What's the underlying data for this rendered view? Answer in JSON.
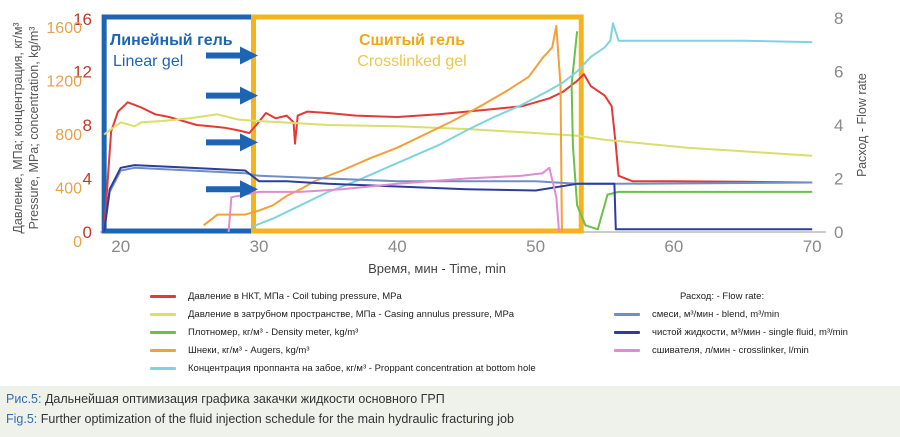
{
  "chart_data": {
    "type": "line",
    "x": {
      "label": "Время, мин - Time, min",
      "min": 18.5,
      "max": 71,
      "ticks": [
        20,
        30,
        40,
        50,
        60,
        70
      ]
    },
    "y_left": {
      "title": [
        "Давление, МПа; концентрация, кг/м³",
        "Pressure, MPa; concentration, kg/m³"
      ],
      "pressure_ticks": [
        0,
        4,
        8,
        12,
        16
      ],
      "concentration_ticks": [
        0,
        400,
        800,
        1200,
        1600
      ],
      "pressure_range": [
        0,
        16
      ],
      "concentration_range": [
        0,
        1600
      ]
    },
    "y_right": {
      "title": "Расход - Flow rate",
      "ticks": [
        0,
        2,
        4,
        6,
        8
      ],
      "range": [
        0,
        8
      ]
    },
    "grid": false,
    "zones": [
      {
        "name": "linear",
        "label_ru": "Линейный гель",
        "label_en": "Linear gel",
        "x_start": 18.8,
        "x_end": 29.6,
        "color": "#1e64b4"
      },
      {
        "name": "crosslinked",
        "label_ru": "Сшитый гель",
        "label_en": "Crosslinked gel",
        "x_start": 29.6,
        "x_end": 53.3,
        "color": "#f5b41e"
      }
    ],
    "arrows_y_pressure": [
      13.2,
      10.2,
      6.7,
      3.2
    ],
    "series": [
      {
        "key": "tubing_pressure",
        "axis": "pressure",
        "color": "#e53935",
        "points": [
          [
            18.8,
            0
          ],
          [
            19.3,
            7.5
          ],
          [
            19.8,
            9
          ],
          [
            20.5,
            9.7
          ],
          [
            21.5,
            9.3
          ],
          [
            22.5,
            8.8
          ],
          [
            23.5,
            8.6
          ],
          [
            24.5,
            8.3
          ],
          [
            25.5,
            8.0
          ],
          [
            26.5,
            7.9
          ],
          [
            27.5,
            7.8
          ],
          [
            28.5,
            7.6
          ],
          [
            29.3,
            7.4
          ],
          [
            29.8,
            8.0
          ],
          [
            30.5,
            8.9
          ],
          [
            31.2,
            8.5
          ],
          [
            32,
            8.7
          ],
          [
            32.5,
            8.2
          ],
          [
            32.6,
            6.6
          ],
          [
            32.8,
            8.7
          ],
          [
            33.5,
            9.0
          ],
          [
            35,
            8.9
          ],
          [
            37,
            8.7
          ],
          [
            40,
            8.6
          ],
          [
            43,
            8.8
          ],
          [
            45,
            9.0
          ],
          [
            47,
            9.2
          ],
          [
            49,
            9.4
          ],
          [
            51,
            10.0
          ],
          [
            52,
            10.5
          ],
          [
            53,
            11.3
          ],
          [
            53.5,
            11.8
          ],
          [
            54,
            10.9
          ],
          [
            55,
            10.2
          ],
          [
            55.5,
            9.4
          ],
          [
            55.8,
            6.5
          ],
          [
            56,
            4.2
          ],
          [
            57,
            3.8
          ],
          [
            60,
            3.8
          ],
          [
            65,
            3.75
          ],
          [
            70,
            3.7
          ]
        ]
      },
      {
        "key": "annulus_pressure",
        "axis": "pressure",
        "color": "#d9df6a",
        "points": [
          [
            18.8,
            7.3
          ],
          [
            20,
            8.2
          ],
          [
            21,
            7.9
          ],
          [
            21.5,
            8.2
          ],
          [
            23,
            8.3
          ],
          [
            25,
            8.5
          ],
          [
            27,
            8.8
          ],
          [
            28.5,
            8.4
          ],
          [
            30,
            8.3
          ],
          [
            35,
            8.0
          ],
          [
            40,
            7.9
          ],
          [
            45,
            7.7
          ],
          [
            50,
            7.4
          ],
          [
            53,
            7.2
          ],
          [
            55,
            6.9
          ],
          [
            58,
            6.6
          ],
          [
            61,
            6.3
          ],
          [
            64,
            6.1
          ],
          [
            67,
            5.9
          ],
          [
            70,
            5.7
          ]
        ]
      },
      {
        "key": "density",
        "axis": "pressure",
        "color": "#6cc04a",
        "points": [
          [
            53,
            15.0
          ],
          [
            52.6,
            11.0
          ],
          [
            52.7,
            6.5
          ],
          [
            53,
            2.0
          ],
          [
            53.6,
            0.5
          ],
          [
            54.5,
            0.2
          ],
          [
            55.2,
            2.8
          ],
          [
            56,
            3.0
          ],
          [
            60,
            3.0
          ],
          [
            70,
            3.0
          ]
        ]
      },
      {
        "key": "augers",
        "axis": "pressure",
        "color": "#f2a03a",
        "points": [
          [
            26,
            0.5
          ],
          [
            27,
            1.3
          ],
          [
            28,
            1.3
          ],
          [
            29,
            1.3
          ],
          [
            30,
            1.6
          ],
          [
            31,
            2.0
          ],
          [
            32,
            2.7
          ],
          [
            33,
            3.2
          ],
          [
            34,
            3.8
          ],
          [
            36,
            4.6
          ],
          [
            38,
            5.5
          ],
          [
            40,
            6.3
          ],
          [
            42,
            7.3
          ],
          [
            44,
            8.3
          ],
          [
            46,
            9.4
          ],
          [
            48,
            10.6
          ],
          [
            49.5,
            11.6
          ],
          [
            50.5,
            13.0
          ],
          [
            51.2,
            13.8
          ],
          [
            51.5,
            15.4
          ],
          [
            51.8,
            11.0
          ],
          [
            51.9,
            0
          ]
        ]
      },
      {
        "key": "proppant",
        "axis": "pressure",
        "color": "#7fd3df",
        "points": [
          [
            29.5,
            0.4
          ],
          [
            31,
            1.0
          ],
          [
            33,
            2.0
          ],
          [
            35,
            3.0
          ],
          [
            37,
            3.8
          ],
          [
            39,
            4.7
          ],
          [
            41,
            5.6
          ],
          [
            43,
            6.5
          ],
          [
            45,
            7.6
          ],
          [
            47,
            8.6
          ],
          [
            49,
            9.5
          ],
          [
            51,
            10.6
          ],
          [
            52,
            11.2
          ],
          [
            53,
            12.0
          ],
          [
            54,
            13.1
          ],
          [
            55,
            13.8
          ],
          [
            55.4,
            14.3
          ],
          [
            55.6,
            15.6
          ],
          [
            56,
            14.3
          ],
          [
            60,
            14.3
          ],
          [
            65,
            14.3
          ],
          [
            70,
            14.2
          ]
        ]
      },
      {
        "key": "blend_rate",
        "axis": "flow",
        "color": "#6f8fc4",
        "points": [
          [
            18.8,
            0
          ],
          [
            19.2,
            1.5
          ],
          [
            20,
            2.3
          ],
          [
            21,
            2.4
          ],
          [
            25,
            2.3
          ],
          [
            29,
            2.2
          ],
          [
            30,
            2.1
          ],
          [
            35,
            2.0
          ],
          [
            40,
            1.9
          ],
          [
            45,
            1.9
          ],
          [
            50,
            1.9
          ],
          [
            53,
            1.8
          ],
          [
            55,
            1.8
          ],
          [
            56,
            1.8
          ],
          [
            70,
            1.85
          ]
        ]
      },
      {
        "key": "single_fluid_rate",
        "axis": "flow",
        "color": "#2c3d9e",
        "points": [
          [
            18.8,
            0
          ],
          [
            19.2,
            1.6
          ],
          [
            20,
            2.4
          ],
          [
            21,
            2.5
          ],
          [
            25,
            2.4
          ],
          [
            29,
            2.3
          ],
          [
            30,
            1.9
          ],
          [
            32,
            1.9
          ],
          [
            35,
            1.8
          ],
          [
            40,
            1.7
          ],
          [
            45,
            1.6
          ],
          [
            50,
            1.55
          ],
          [
            53,
            1.8
          ],
          [
            55.7,
            1.8
          ],
          [
            55.8,
            0.1
          ],
          [
            70,
            0.1
          ]
        ]
      },
      {
        "key": "crosslinker_rate",
        "axis": "flow",
        "color": "#e08ccf",
        "points": [
          [
            27.8,
            0
          ],
          [
            28,
            1.3
          ],
          [
            29,
            1.4
          ],
          [
            30,
            1.5
          ],
          [
            33,
            1.5
          ],
          [
            36,
            1.6
          ],
          [
            40,
            1.8
          ],
          [
            45,
            2.0
          ],
          [
            49,
            2.1
          ],
          [
            50.5,
            2.2
          ],
          [
            51,
            2.4
          ],
          [
            51.5,
            1.3
          ],
          [
            51.7,
            0
          ]
        ]
      }
    ]
  },
  "legend": {
    "flow_header": "Расход: - Flow rate:",
    "items": [
      {
        "key": "tubing_pressure",
        "label": "Давление в НКТ, МПа - Coil tubing pressure, MPa",
        "color": "#e53935"
      },
      {
        "key": "annulus_pressure",
        "label": "Давление в затрубном пространстве, МПа - Casing annulus pressure, MPa",
        "color": "#d9df6a"
      },
      {
        "key": "density",
        "label": "Плотномер, кг/м³ - Density meter, kg/m³",
        "color": "#6cc04a"
      },
      {
        "key": "augers",
        "label": "Шнеки, кг/м³ - Augers, kg/m³",
        "color": "#f2a03a"
      },
      {
        "key": "proppant",
        "label": "Концентрация проппанта на забое, кг/м³ - Proppant concentration at bottom hole",
        "color": "#7fd3df"
      },
      {
        "key": "blend_rate",
        "label": "смеси, м³/мин - blend, m³/min",
        "color": "#6f8fc4"
      },
      {
        "key": "single_fluid_rate",
        "label": "чистой жидкости, м³/мин - single fluid, m³/min",
        "color": "#2c3d9e"
      },
      {
        "key": "crosslinker_rate",
        "label": "сшивателя, л/мин - crosslinker, l/min",
        "color": "#e08ccf"
      }
    ]
  },
  "caption": {
    "ru_label": "Рис.5:",
    "ru_text": " Дальнейшая оптимизация графика закачки жидкости основного ГРП",
    "en_label": "Fig.5:",
    "en_text": " Further optimization of the fluid injection schedule for the main hydraulic fracturing job"
  }
}
